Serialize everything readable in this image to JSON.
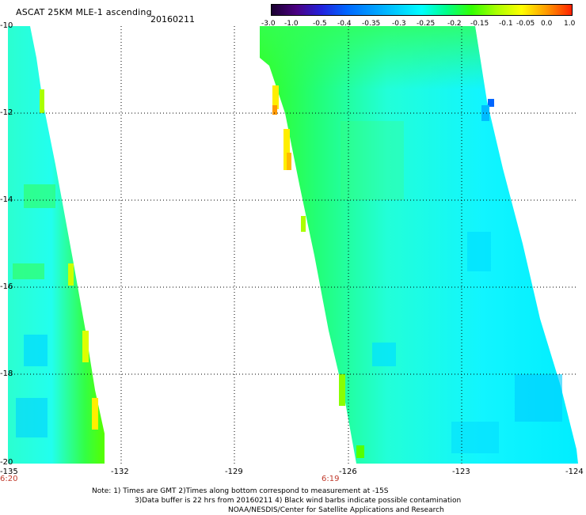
{
  "title": "ASCAT 25KM MLE-1 ascending",
  "date": "20160211",
  "colorbar": {
    "labels": [
      "-3.0",
      "-1.0",
      "-0.5",
      "-0.4",
      "-0.35",
      "-0.3",
      "-0.25",
      "-0.2",
      "-0.15",
      "-0.1",
      "-0.05",
      "0.0",
      "1.0"
    ],
    "colors": [
      "#1a0030",
      "#4b0082",
      "#2222dd",
      "#0066ff",
      "#0099ff",
      "#00ccff",
      "#00ffff",
      "#00ff88",
      "#33ff00",
      "#aaff00",
      "#ffff00",
      "#ff9900",
      "#ff2200"
    ]
  },
  "y_ticks": [
    "-10",
    "-12",
    "-14",
    "-16",
    "-18",
    "-20"
  ],
  "x_ticks": [
    "-135",
    "-132",
    "-129",
    "-126",
    "-123",
    "-124"
  ],
  "times": [
    "6:20",
    "6:19"
  ],
  "notes": [
    "Note: 1) Times are GMT 2)Times along bottom correspond to measurement at -15S",
    "3)Data buffer is 22 hrs from 20160211 4) Black wind barbs indicate possible contamination",
    "NOAA/NESDIS/Center for Satellite Applications and Research"
  ]
}
